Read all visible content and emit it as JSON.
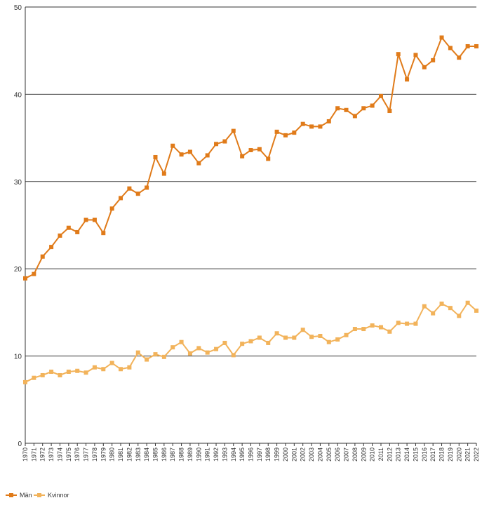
{
  "chart_data": {
    "type": "line",
    "title": "",
    "xlabel": "",
    "ylabel": "",
    "ylim": [
      0,
      50
    ],
    "yticks": [
      0,
      10,
      20,
      30,
      40,
      50
    ],
    "grid": "horizontal",
    "legend_position": "bottom-left",
    "x": [
      "1970",
      "1971",
      "1972",
      "1973",
      "1974",
      "1975",
      "1976",
      "1977",
      "1978",
      "1979",
      "1980",
      "1981",
      "1982",
      "1983",
      "1984",
      "1985",
      "1986",
      "1987",
      "1988",
      "1989",
      "1990",
      "1991",
      "1992",
      "1993",
      "1994",
      "1995",
      "1996",
      "1997",
      "1998",
      "1999",
      "2000",
      "2001",
      "2002",
      "2003",
      "2004",
      "2005",
      "2006",
      "2007",
      "2008",
      "2009",
      "2010",
      "2011",
      "2012",
      "2013",
      "2014",
      "2015",
      "2016",
      "2017",
      "2018",
      "2019",
      "2020",
      "2021",
      "2022"
    ],
    "series": [
      {
        "name": "Män",
        "color": "#e07b1a",
        "values": [
          18.9,
          19.4,
          21.4,
          22.5,
          23.8,
          24.7,
          24.2,
          25.6,
          25.6,
          24.1,
          26.9,
          28.1,
          29.2,
          28.6,
          29.3,
          32.8,
          30.9,
          34.1,
          33.1,
          33.4,
          32.1,
          33.0,
          34.3,
          34.6,
          35.8,
          32.9,
          33.6,
          33.7,
          32.6,
          35.7,
          35.3,
          35.6,
          36.6,
          36.3,
          36.3,
          36.9,
          38.4,
          38.2,
          37.5,
          38.4,
          38.7,
          39.8,
          38.1,
          44.6,
          41.7,
          44.5,
          43.1,
          43.9,
          46.5,
          45.3,
          44.2,
          45.5,
          45.5
        ]
      },
      {
        "name": "Kvinnor",
        "color": "#f2b35b",
        "values": [
          7.0,
          7.5,
          7.8,
          8.2,
          7.8,
          8.2,
          8.3,
          8.1,
          8.7,
          8.5,
          9.2,
          8.5,
          8.7,
          10.4,
          9.6,
          10.2,
          9.9,
          11.0,
          11.6,
          10.3,
          10.9,
          10.4,
          10.8,
          11.5,
          10.1,
          11.4,
          11.7,
          12.1,
          11.5,
          12.6,
          12.1,
          12.1,
          13.0,
          12.2,
          12.3,
          11.6,
          11.9,
          12.4,
          13.1,
          13.1,
          13.5,
          13.3,
          12.8,
          13.8,
          13.7,
          13.7,
          15.7,
          14.9,
          16.0,
          15.5,
          14.6,
          16.1,
          15.2
        ]
      }
    ]
  }
}
